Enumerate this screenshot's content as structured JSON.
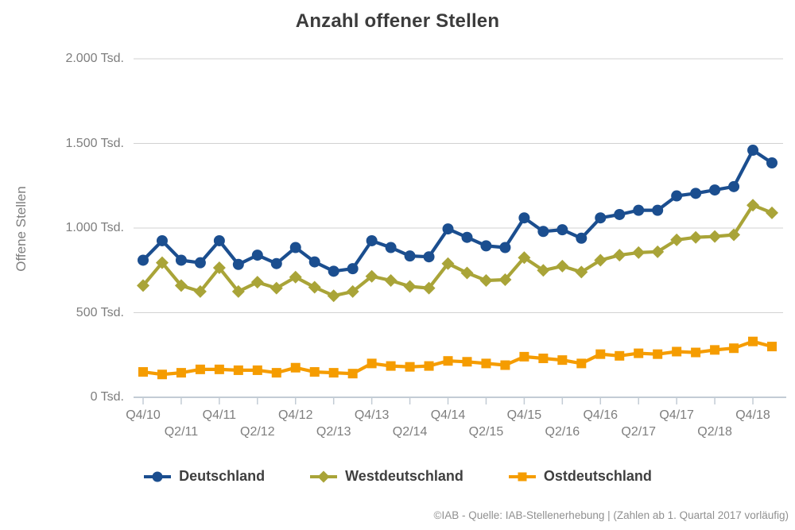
{
  "title": "Anzahl offener Stellen",
  "y_axis_title": "Offene Stellen",
  "footer": "©IAB - Quelle: IAB-Stellenerhebung | (Zahlen ab 1. Quartal 2017 vorläufig)",
  "chart_data": {
    "type": "line",
    "title": "Anzahl offener Stellen",
    "ylabel": "Offene Stellen",
    "unit": "Tsd.",
    "ylim": [
      0,
      2000
    ],
    "grid": "horizontal",
    "legend_position": "bottom",
    "x": [
      "Q4/10",
      "Q1/11",
      "Q2/11",
      "Q3/11",
      "Q4/11",
      "Q1/12",
      "Q2/12",
      "Q3/12",
      "Q4/12",
      "Q1/13",
      "Q2/13",
      "Q3/13",
      "Q4/13",
      "Q1/14",
      "Q2/14",
      "Q3/14",
      "Q4/14",
      "Q1/15",
      "Q2/15",
      "Q3/15",
      "Q4/15",
      "Q1/16",
      "Q2/16",
      "Q3/16",
      "Q4/16",
      "Q1/17",
      "Q2/17",
      "Q3/17",
      "Q4/17",
      "Q1/18",
      "Q2/18",
      "Q3/18",
      "Q4/18",
      "Q1/19"
    ],
    "x_tick_labels": [
      "Q4/10",
      "Q2/11",
      "Q4/11",
      "Q2/12",
      "Q4/12",
      "Q2/13",
      "Q4/13",
      "Q2/14",
      "Q4/14",
      "Q2/15",
      "Q4/15",
      "Q2/16",
      "Q4/16",
      "Q2/17",
      "Q4/17",
      "Q2/18",
      "Q4/18"
    ],
    "y_ticks": [
      {
        "value": 0,
        "label": "0 Tsd."
      },
      {
        "value": 500,
        "label": "500 Tsd."
      },
      {
        "value": 1000,
        "label": "1.000 Tsd."
      },
      {
        "value": 1500,
        "label": "1.500 Tsd."
      },
      {
        "value": 2000,
        "label": "2.000 Tsd."
      }
    ],
    "series": [
      {
        "name": "Deutschland",
        "color": "#1b4e8f",
        "marker": "circle",
        "values": [
          810,
          925,
          810,
          795,
          925,
          785,
          840,
          790,
          885,
          800,
          745,
          760,
          925,
          885,
          835,
          830,
          995,
          945,
          895,
          885,
          1060,
          980,
          990,
          940,
          1060,
          1080,
          1105,
          1105,
          1190,
          1205,
          1225,
          1245,
          1460,
          1385
        ]
      },
      {
        "name": "Westdeutschland",
        "color": "#a9a438",
        "marker": "diamond",
        "values": [
          660,
          795,
          660,
          625,
          765,
          625,
          680,
          645,
          710,
          650,
          600,
          625,
          715,
          690,
          655,
          645,
          790,
          735,
          690,
          695,
          825,
          750,
          775,
          740,
          810,
          840,
          855,
          860,
          930,
          945,
          950,
          960,
          1135,
          1090
        ]
      },
      {
        "name": "Ostdeutschland",
        "color": "#f59c00",
        "marker": "square",
        "values": [
          150,
          135,
          145,
          165,
          165,
          160,
          160,
          145,
          175,
          150,
          145,
          140,
          200,
          185,
          180,
          185,
          215,
          210,
          200,
          190,
          240,
          230,
          220,
          200,
          255,
          245,
          260,
          255,
          270,
          265,
          280,
          290,
          330,
          300
        ]
      }
    ]
  }
}
